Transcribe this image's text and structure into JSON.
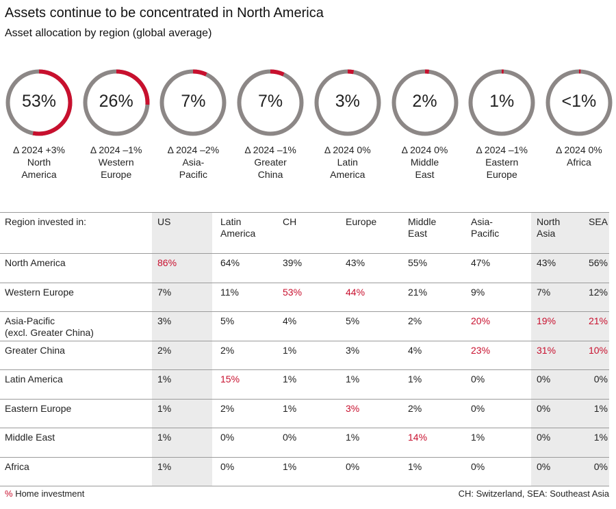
{
  "title": "Assets continue to be concentrated in North America",
  "subtitle": "Asset allocation by region (global average)",
  "colors": {
    "accent": "#c8102e",
    "ring": "#8c8786",
    "shade": "#ebebeb",
    "text": "#222222"
  },
  "chart_data": [
    {
      "type": "pie",
      "title": "Asset allocation by region (global average)",
      "categories": [
        "North America",
        "Western Europe",
        "Asia-Pacific",
        "Greater China",
        "Latin America",
        "Middle East",
        "Eastern Europe",
        "Africa"
      ],
      "values": [
        53,
        26,
        7,
        7,
        3,
        2,
        1,
        0.5
      ],
      "value_labels": [
        "53%",
        "26%",
        "7%",
        "7%",
        "3%",
        "2%",
        "1%",
        "<1%"
      ],
      "change_labels": [
        "Δ 2024 +3%",
        "Δ 2024 –1%",
        "Δ 2024 –2%",
        "Δ 2024 –1%",
        "Δ 2024 0%",
        "Δ 2024 0%",
        "Δ 2024 –1%",
        "Δ 2024 0%"
      ],
      "region_lines": [
        [
          "North",
          "America"
        ],
        [
          "Western",
          "Europe"
        ],
        [
          "Asia-",
          "Pacific"
        ],
        [
          "Greater",
          "China"
        ],
        [
          "Latin",
          "America"
        ],
        [
          "Middle",
          "East"
        ],
        [
          "Eastern",
          "Europe"
        ],
        [
          "Africa"
        ]
      ]
    },
    {
      "type": "table",
      "corner_label": "Region invested in:",
      "columns": [
        [
          "US"
        ],
        [
          "Latin",
          "America"
        ],
        [
          "CH"
        ],
        [
          "Europe"
        ],
        [
          "Middle",
          "East"
        ],
        [
          "Asia-",
          "Pacific"
        ],
        [
          "North",
          "Asia"
        ],
        [
          "SEA"
        ]
      ],
      "rows": [
        {
          "label": [
            "North America"
          ],
          "values": [
            "86%",
            "64%",
            "39%",
            "43%",
            "55%",
            "47%",
            "43%",
            "56%"
          ],
          "home": [
            0
          ]
        },
        {
          "label": [
            "Western Europe"
          ],
          "values": [
            "7%",
            "11%",
            "53%",
            "44%",
            "21%",
            "9%",
            "7%",
            "12%"
          ],
          "home": [
            2,
            3
          ]
        },
        {
          "label": [
            "Asia-Pacific",
            "(excl. Greater China)"
          ],
          "values": [
            "3%",
            "5%",
            "4%",
            "5%",
            "2%",
            "20%",
            "19%",
            "21%"
          ],
          "home": [
            5,
            6,
            7
          ]
        },
        {
          "label": [
            "Greater China"
          ],
          "values": [
            "2%",
            "2%",
            "1%",
            "3%",
            "4%",
            "23%",
            "31%",
            "10%"
          ],
          "home": [
            5,
            6,
            7
          ]
        },
        {
          "label": [
            "Latin America"
          ],
          "values": [
            "1%",
            "15%",
            "1%",
            "1%",
            "1%",
            "0%",
            "0%",
            "0%"
          ],
          "home": [
            1
          ]
        },
        {
          "label": [
            "Eastern Europe"
          ],
          "values": [
            "1%",
            "2%",
            "1%",
            "3%",
            "2%",
            "0%",
            "0%",
            "1%"
          ],
          "home": [
            3
          ]
        },
        {
          "label": [
            "Middle East"
          ],
          "values": [
            "1%",
            "0%",
            "0%",
            "1%",
            "14%",
            "1%",
            "0%",
            "1%"
          ],
          "home": [
            4
          ]
        },
        {
          "label": [
            "Africa"
          ],
          "values": [
            "1%",
            "0%",
            "1%",
            "0%",
            "1%",
            "0%",
            "0%",
            "0%"
          ],
          "home": []
        }
      ]
    }
  ],
  "legend": {
    "symbol": "%",
    "label": "Home investment"
  },
  "footnote": "CH: Switzerland, SEA: Southeast Asia"
}
